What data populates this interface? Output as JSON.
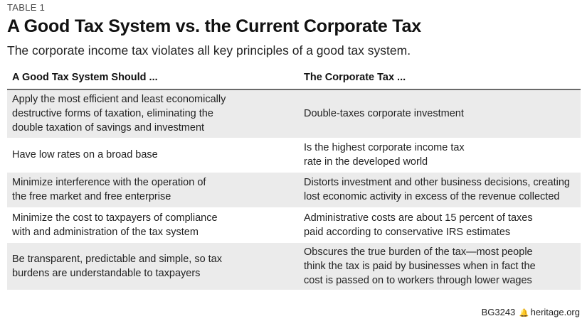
{
  "label": "TABLE 1",
  "title": "A Good Tax System vs. the Current Corporate Tax",
  "subtitle": "The corporate income tax violates all key principles of a good tax system.",
  "table": {
    "headers": [
      "A Good Tax System Should ...",
      "The Corporate Tax ..."
    ],
    "rows": [
      {
        "c1": [
          "Apply the most efficient and least economically",
          "destructive forms of taxation, eliminating the",
          "double taxation of savings and investment"
        ],
        "c2": [
          "Double-taxes corporate investment"
        ]
      },
      {
        "c1": [
          "Have low rates on a broad base"
        ],
        "c2": [
          "Is the highest corporate income tax",
          "rate in the developed world"
        ]
      },
      {
        "c1": [
          "Minimize interference with the operation of",
          "the free market and free enterprise"
        ],
        "c2": [
          "Distorts investment and other business decisions, creating",
          "lost economic activity in excess of the revenue collected"
        ]
      },
      {
        "c1": [
          "Minimize the cost to taxpayers of compliance",
          "with and administration of the tax system"
        ],
        "c2": [
          "Administrative costs are about 15 percent of taxes",
          "paid according to conservative IRS estimates"
        ]
      },
      {
        "c1": [
          "Be transparent, predictable and simple, so tax",
          "burdens are understandable to taxpayers"
        ],
        "c2": [
          "Obscures the true burden of the tax—most people",
          "think the tax is paid by businesses when in fact the",
          "cost is passed on to workers through lower wages"
        ]
      }
    ]
  },
  "footer": {
    "code": "BG3243",
    "logo_icon": "liberty-bell-icon",
    "site": "heritage.org"
  }
}
